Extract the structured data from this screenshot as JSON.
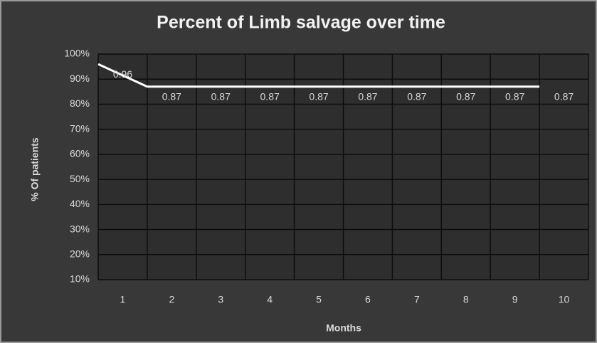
{
  "chart_data": {
    "type": "line",
    "title": "Percent of Limb salvage over time",
    "x_label": "Months",
    "y_label": "% Of patients",
    "categories": [
      "1",
      "2",
      "3",
      "4",
      "5",
      "6",
      "7",
      "8",
      "9",
      "10"
    ],
    "series": [
      {
        "color": "#ffffff",
        "values": [
          96,
          87,
          87,
          87,
          87,
          87,
          87,
          87,
          87,
          87
        ],
        "value_labels": [
          "0.96",
          "0.87",
          "0.87",
          "0.87",
          "0.87",
          "0.87",
          "0.87",
          "0.87",
          "0.87",
          "0.87"
        ]
      }
    ],
    "ylim": [
      10,
      100
    ],
    "yticks": [
      {
        "value": 10,
        "label": "10%"
      },
      {
        "value": 20,
        "label": "20%"
      },
      {
        "value": 30,
        "label": "30%"
      },
      {
        "value": 40,
        "label": "40%"
      },
      {
        "value": 50,
        "label": "50%"
      },
      {
        "value": 60,
        "label": "60%"
      },
      {
        "value": 70,
        "label": "70%"
      },
      {
        "value": 80,
        "label": "80%"
      },
      {
        "value": 90,
        "label": "90%"
      },
      {
        "value": 100,
        "label": "100%"
      }
    ],
    "grid": true
  }
}
